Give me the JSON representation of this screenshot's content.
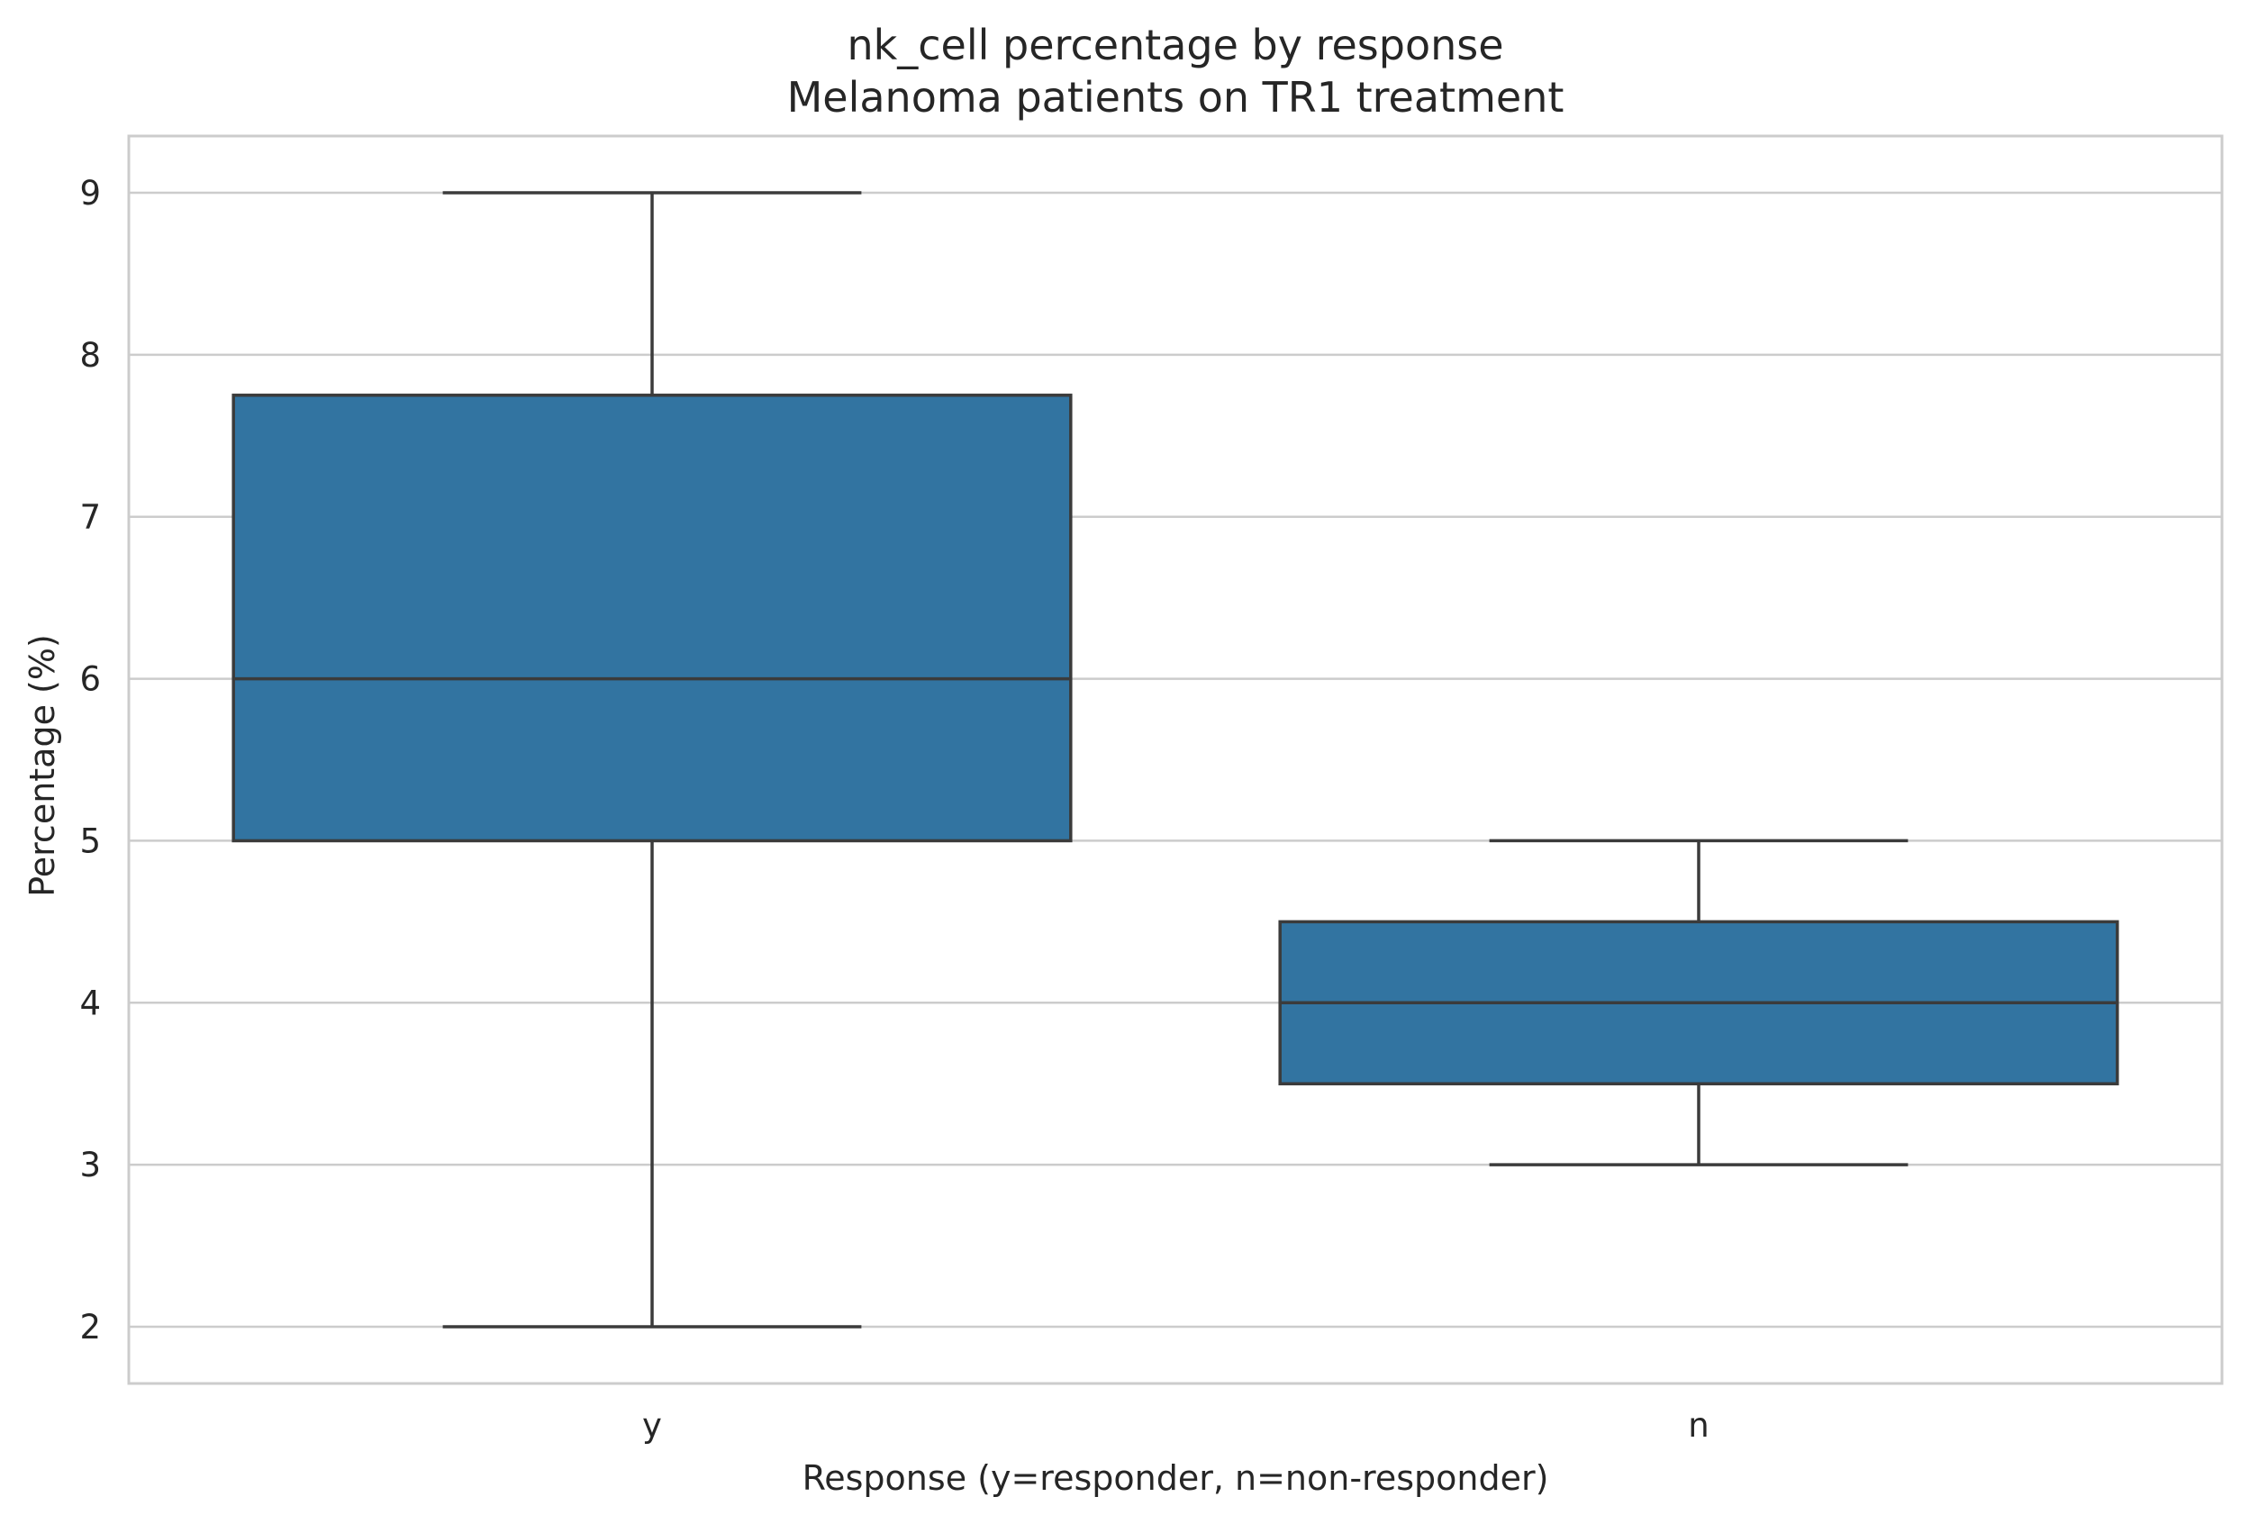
{
  "chart_data": {
    "type": "box",
    "title": "nk_cell percentage by response",
    "subtitle": "Melanoma patients on TR1 treatment",
    "xlabel": "Response (y=responder, n=non-responder)",
    "ylabel": "Percentage (%)",
    "categories": [
      "y",
      "n"
    ],
    "boxes": [
      {
        "category": "y",
        "whisker_low": 2,
        "q1": 5,
        "median": 6,
        "q3": 7.75,
        "whisker_high": 9
      },
      {
        "category": "n",
        "whisker_low": 3,
        "q1": 3.5,
        "median": 4,
        "q3": 4.5,
        "whisker_high": 5
      }
    ],
    "yticks": [
      2,
      3,
      4,
      5,
      6,
      7,
      8,
      9
    ],
    "ylim": [
      1.65,
      9.35
    ],
    "grid": true,
    "box_color": "#3274a1",
    "line_color": "#3b3b3b"
  }
}
